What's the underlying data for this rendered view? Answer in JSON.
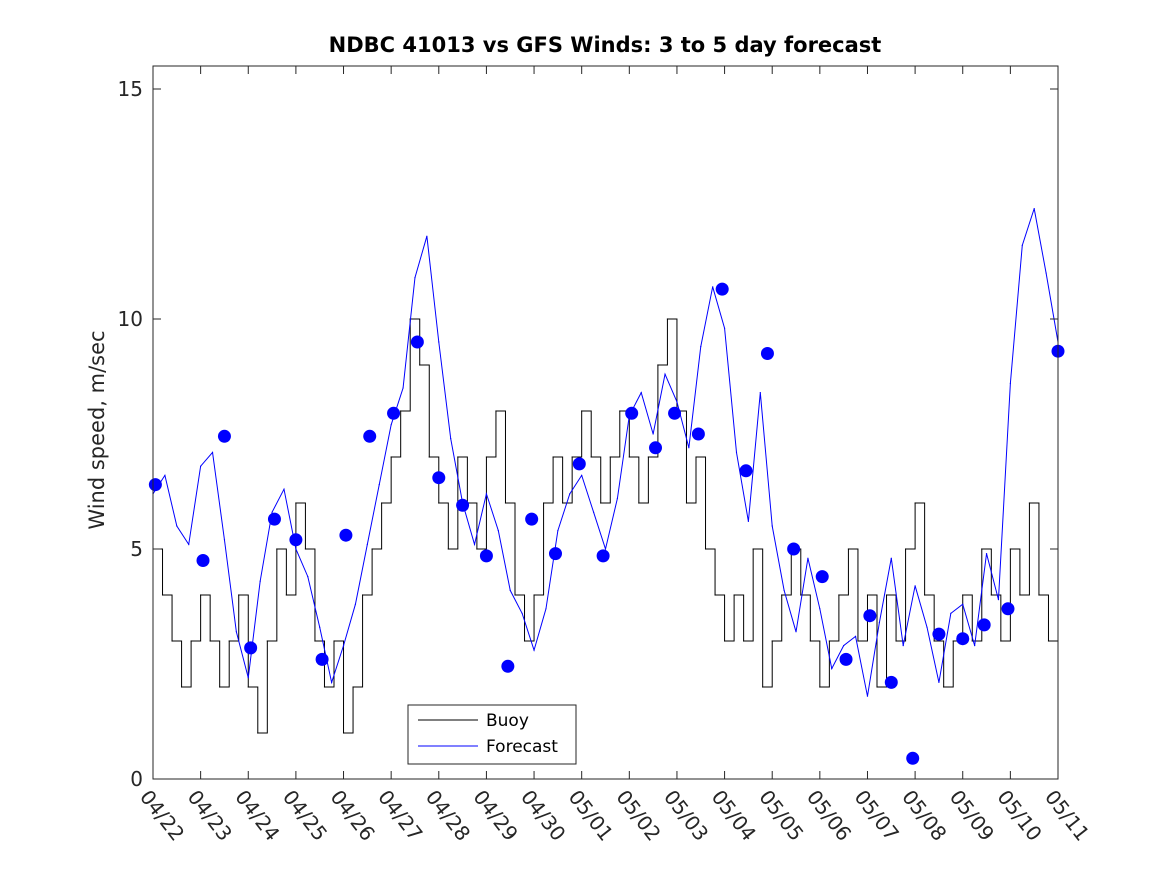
{
  "chart_data": {
    "type": "line",
    "title": "NDBC 41013 vs GFS Winds: 3 to 5 day forecast",
    "xlabel": "",
    "ylabel": "Wind speed, m/sec",
    "xlim": [
      "04/22",
      "05/11"
    ],
    "ylim": [
      0,
      15.5
    ],
    "x_ticks": [
      "04/22",
      "04/23",
      "04/24",
      "04/25",
      "04/26",
      "04/27",
      "04/28",
      "04/29",
      "04/30",
      "05/01",
      "05/02",
      "05/03",
      "05/04",
      "05/05",
      "05/06",
      "05/07",
      "05/08",
      "05/09",
      "05/10",
      "05/11"
    ],
    "y_ticks": [
      0,
      5,
      10,
      15
    ],
    "grid": false,
    "legend": {
      "position": "bottom-center",
      "entries": [
        "Buoy",
        "Forecast"
      ]
    },
    "colors": {
      "buoy": "#000000",
      "forecast": "#0000ff",
      "markers": "#0000ff"
    },
    "x_units": "days since 04/22 00:00",
    "series": [
      {
        "name": "Buoy",
        "x": [
          0,
          0.2,
          0.4,
          0.6,
          0.8,
          1,
          1.2,
          1.4,
          1.6,
          1.8,
          2,
          2.2,
          2.4,
          2.6,
          2.8,
          3,
          3.2,
          3.4,
          3.6,
          3.8,
          4,
          4.2,
          4.4,
          4.6,
          4.8,
          5,
          5.2,
          5.4,
          5.6,
          5.8,
          6,
          6.2,
          6.4,
          6.6,
          6.8,
          7,
          7.2,
          7.4,
          7.6,
          7.8,
          8,
          8.2,
          8.4,
          8.6,
          8.8,
          9,
          9.2,
          9.4,
          9.6,
          9.8,
          10,
          10.2,
          10.4,
          10.6,
          10.8,
          11,
          11.2,
          11.4,
          11.6,
          11.8,
          12,
          12.2,
          12.4,
          12.6,
          12.8,
          13,
          13.2,
          13.4,
          13.6,
          13.8,
          14,
          14.2,
          14.4,
          14.6,
          14.8,
          15,
          15.2,
          15.4,
          15.6,
          15.8,
          16,
          16.2,
          16.4,
          16.6,
          16.8,
          17,
          17.2,
          17.4,
          17.6,
          17.8,
          18,
          18.2,
          18.4,
          18.6,
          18.8,
          19
        ],
        "values": [
          5,
          4,
          3,
          2,
          3,
          4,
          3,
          2,
          3,
          4,
          2,
          1,
          3,
          5,
          4,
          6,
          5,
          3,
          2,
          3,
          1,
          2,
          4,
          5,
          6,
          7,
          8,
          10,
          9,
          7,
          6,
          5,
          7,
          6,
          5,
          7,
          8,
          6,
          4,
          3,
          4,
          6,
          7,
          6,
          7,
          8,
          7,
          6,
          7,
          8,
          7,
          6,
          7,
          9,
          10,
          8,
          6,
          7,
          5,
          4,
          3,
          4,
          3,
          5,
          2,
          3,
          4,
          5,
          4,
          3,
          2,
          3,
          4,
          5,
          3,
          4,
          2,
          4,
          3,
          5,
          6,
          4,
          3,
          2,
          3,
          4,
          3,
          5,
          4,
          3,
          5,
          4,
          6,
          4,
          3,
          3
        ]
      },
      {
        "name": "Forecast",
        "x": [
          0,
          0.25,
          0.5,
          0.75,
          1,
          1.25,
          1.5,
          1.75,
          2,
          2.25,
          2.5,
          2.75,
          3,
          3.25,
          3.5,
          3.75,
          4,
          4.25,
          4.5,
          4.75,
          5,
          5.25,
          5.5,
          5.75,
          6,
          6.25,
          6.5,
          6.75,
          7,
          7.25,
          7.5,
          7.75,
          8,
          8.25,
          8.5,
          8.75,
          9,
          9.25,
          9.5,
          9.75,
          10,
          10.25,
          10.5,
          10.75,
          11,
          11.25,
          11.5,
          11.75,
          12,
          12.25,
          12.5,
          12.75,
          13,
          13.25,
          13.5,
          13.75,
          14,
          14.25,
          14.5,
          14.75,
          15,
          15.25,
          15.5,
          15.75,
          16,
          16.25,
          16.5,
          16.75,
          17,
          17.25,
          17.5,
          17.75,
          18,
          18.25,
          18.5,
          18.75,
          19
        ],
        "values": [
          6.2,
          6.6,
          5.5,
          5.1,
          6.8,
          7.1,
          5.2,
          3.2,
          2.2,
          4.3,
          5.8,
          6.3,
          5.0,
          4.4,
          3.3,
          2.1,
          2.9,
          3.8,
          5.1,
          6.4,
          7.7,
          8.5,
          10.9,
          11.8,
          9.5,
          7.4,
          6.0,
          5.1,
          6.2,
          5.4,
          4.1,
          3.6,
          2.8,
          3.7,
          5.4,
          6.2,
          6.6,
          5.8,
          5.0,
          6.1,
          7.9,
          8.4,
          7.5,
          8.8,
          8.2,
          7.2,
          9.4,
          10.7,
          9.8,
          7.1,
          5.6,
          8.4,
          5.5,
          4.1,
          3.2,
          4.8,
          3.7,
          2.4,
          2.9,
          3.1,
          1.8,
          3.4,
          4.8,
          2.9,
          4.2,
          3.3,
          2.1,
          3.6,
          3.8,
          2.9,
          4.9,
          3.9,
          8.6,
          11.6,
          12.4,
          11.0,
          9.5
        ]
      }
    ],
    "forecast_points": {
      "x": [
        0.05,
        1.05,
        1.5,
        2.05,
        2.55,
        3.0,
        3.55,
        4.05,
        4.55,
        5.05,
        5.55,
        6.0,
        6.5,
        7.0,
        7.45,
        7.95,
        8.45,
        8.95,
        9.45,
        10.05,
        10.55,
        10.95,
        11.45,
        11.95,
        12.45,
        12.9,
        13.45,
        14.05,
        14.55,
        15.05,
        15.5,
        15.95,
        16.5,
        17.0,
        17.45,
        17.95,
        19.0
      ],
      "values": [
        6.4,
        4.75,
        7.45,
        2.85,
        5.65,
        5.2,
        2.6,
        5.3,
        7.45,
        7.95,
        9.5,
        6.55,
        5.95,
        4.85,
        2.45,
        5.65,
        4.9,
        6.85,
        4.85,
        7.95,
        7.2,
        7.95,
        7.5,
        10.65,
        6.7,
        9.25,
        5.0,
        4.4,
        2.6,
        3.55,
        2.1,
        0.45,
        3.15,
        3.05,
        3.35,
        3.7,
        9.3
      ]
    }
  }
}
